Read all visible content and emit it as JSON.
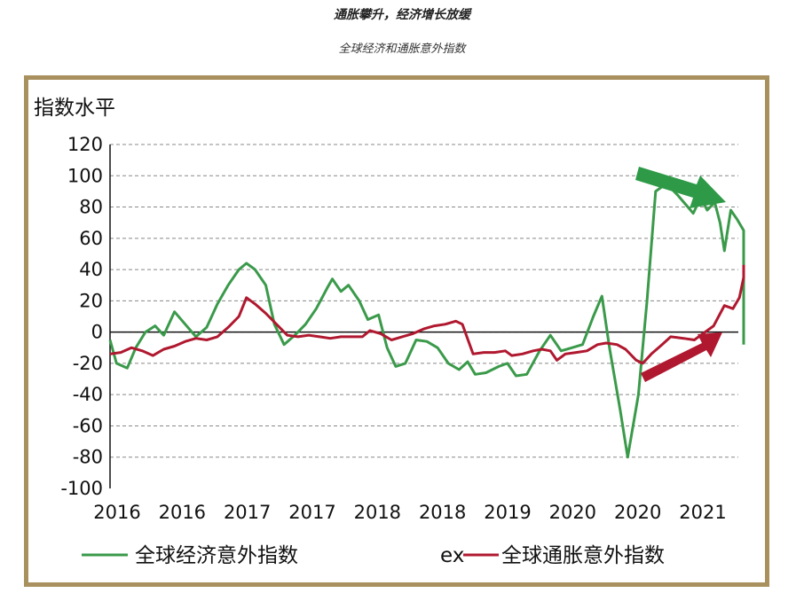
{
  "header": {
    "title": "通胀攀升，经济增长放缓",
    "subtitle": "全球经济和通胀意外指数"
  },
  "colors": {
    "frame": "#a8915f",
    "economy": "#3a9a4a",
    "inflation": "#b0182f",
    "arrow_green": "#2e9a47",
    "arrow_red": "#b0182f",
    "grid": "#888888"
  },
  "chart_data": {
    "type": "line",
    "ylabel": "指数水平",
    "xlabel": "",
    "ylim": [
      -100,
      120
    ],
    "yticks": [
      120,
      100,
      80,
      60,
      40,
      20,
      0,
      -20,
      -40,
      -60,
      -80,
      -100
    ],
    "xlim": [
      2016.0,
      2021.85
    ],
    "xtick_labels": [
      "2016",
      "2016",
      "2017",
      "2017",
      "2018",
      "2018",
      "2019",
      "2020",
      "2020",
      "2021"
    ],
    "grid": true,
    "legend_position": "bottom",
    "legend_artifact": "ex",
    "series": [
      {
        "name": "全球经济意外指数",
        "color": "#3a9a4a",
        "points": [
          [
            2016.0,
            -5
          ],
          [
            2016.06,
            -20
          ],
          [
            2016.16,
            -23
          ],
          [
            2016.24,
            -10
          ],
          [
            2016.33,
            0
          ],
          [
            2016.42,
            4
          ],
          [
            2016.5,
            -2
          ],
          [
            2016.6,
            13
          ],
          [
            2016.7,
            5
          ],
          [
            2016.8,
            -3
          ],
          [
            2016.9,
            3
          ],
          [
            2017.0,
            18
          ],
          [
            2017.1,
            30
          ],
          [
            2017.2,
            40
          ],
          [
            2017.27,
            44
          ],
          [
            2017.35,
            40
          ],
          [
            2017.45,
            30
          ],
          [
            2017.53,
            5
          ],
          [
            2017.62,
            -8
          ],
          [
            2017.72,
            -2
          ],
          [
            2017.82,
            5
          ],
          [
            2017.92,
            15
          ],
          [
            2018.02,
            28
          ],
          [
            2018.07,
            34
          ],
          [
            2018.15,
            26
          ],
          [
            2018.22,
            30
          ],
          [
            2018.32,
            20
          ],
          [
            2018.4,
            8
          ],
          [
            2018.5,
            11
          ],
          [
            2018.58,
            -10
          ],
          [
            2018.66,
            -22
          ],
          [
            2018.75,
            -20
          ],
          [
            2018.85,
            -5
          ],
          [
            2018.95,
            -6
          ],
          [
            2019.05,
            -10
          ],
          [
            2019.15,
            -20
          ],
          [
            2019.25,
            -24
          ],
          [
            2019.33,
            -19
          ],
          [
            2019.4,
            -27
          ],
          [
            2019.5,
            -26
          ],
          [
            2019.62,
            -22
          ],
          [
            2019.7,
            -20
          ],
          [
            2019.78,
            -28
          ],
          [
            2019.88,
            -27
          ],
          [
            2020.0,
            -12
          ],
          [
            2020.1,
            -2
          ],
          [
            2020.2,
            -12
          ],
          [
            2020.3,
            -10
          ],
          [
            2020.4,
            -8
          ],
          [
            2020.5,
            10
          ],
          [
            2020.58,
            23
          ],
          [
            2020.65,
            -10
          ],
          [
            2020.75,
            -50
          ],
          [
            2020.82,
            -80
          ],
          [
            2020.92,
            -40
          ],
          [
            2021.0,
            20
          ],
          [
            2021.08,
            90
          ],
          [
            2021.18,
            95
          ],
          [
            2021.28,
            88
          ],
          [
            2021.38,
            80
          ],
          [
            2021.43,
            76
          ],
          [
            2021.5,
            86
          ],
          [
            2021.56,
            78
          ],
          [
            2021.63,
            83
          ],
          [
            2021.68,
            70
          ],
          [
            2021.72,
            52
          ],
          [
            2021.78,
            78
          ],
          [
            2021.84,
            72
          ],
          [
            2021.9,
            65
          ],
          [
            2021.94,
            50
          ],
          [
            2021.99,
            15
          ],
          [
            2022.04,
            -8
          ]
        ]
      },
      {
        "name": "全球通胀意外指数",
        "color": "#b0182f",
        "points": [
          [
            2016.0,
            -14
          ],
          [
            2016.1,
            -13
          ],
          [
            2016.2,
            -10
          ],
          [
            2016.3,
            -12
          ],
          [
            2016.4,
            -15
          ],
          [
            2016.5,
            -11
          ],
          [
            2016.6,
            -9
          ],
          [
            2016.7,
            -6
          ],
          [
            2016.8,
            -4
          ],
          [
            2016.9,
            -5
          ],
          [
            2017.0,
            -3
          ],
          [
            2017.1,
            3
          ],
          [
            2017.2,
            10
          ],
          [
            2017.27,
            22
          ],
          [
            2017.35,
            18
          ],
          [
            2017.45,
            12
          ],
          [
            2017.55,
            5
          ],
          [
            2017.65,
            -2
          ],
          [
            2017.75,
            -3
          ],
          [
            2017.85,
            -2
          ],
          [
            2017.95,
            -3
          ],
          [
            2018.05,
            -4
          ],
          [
            2018.15,
            -3
          ],
          [
            2018.25,
            -3
          ],
          [
            2018.35,
            -3
          ],
          [
            2018.42,
            1
          ],
          [
            2018.52,
            -1
          ],
          [
            2018.62,
            -5
          ],
          [
            2018.72,
            -3
          ],
          [
            2018.82,
            -1
          ],
          [
            2018.92,
            2
          ],
          [
            2019.02,
            4
          ],
          [
            2019.12,
            5
          ],
          [
            2019.22,
            7
          ],
          [
            2019.28,
            5
          ],
          [
            2019.38,
            -14
          ],
          [
            2019.48,
            -13
          ],
          [
            2019.58,
            -13
          ],
          [
            2019.68,
            -12
          ],
          [
            2019.74,
            -15
          ],
          [
            2019.84,
            -14
          ],
          [
            2019.94,
            -12
          ],
          [
            2020.02,
            -11
          ],
          [
            2020.1,
            -12
          ],
          [
            2020.16,
            -18
          ],
          [
            2020.24,
            -14
          ],
          [
            2020.34,
            -13
          ],
          [
            2020.44,
            -12
          ],
          [
            2020.54,
            -8
          ],
          [
            2020.62,
            -7
          ],
          [
            2020.72,
            -8
          ],
          [
            2020.8,
            -11
          ],
          [
            2020.9,
            -18
          ],
          [
            2020.96,
            -20
          ],
          [
            2021.04,
            -14
          ],
          [
            2021.14,
            -8
          ],
          [
            2021.22,
            -3
          ],
          [
            2021.34,
            -4
          ],
          [
            2021.44,
            -5
          ],
          [
            2021.52,
            -1
          ],
          [
            2021.62,
            4
          ],
          [
            2021.72,
            17
          ],
          [
            2021.8,
            15
          ],
          [
            2021.86,
            22
          ],
          [
            2021.94,
            35
          ],
          [
            2022.0,
            40
          ],
          [
            2022.06,
            42
          ],
          [
            2022.14,
            43
          ]
        ]
      }
    ]
  }
}
